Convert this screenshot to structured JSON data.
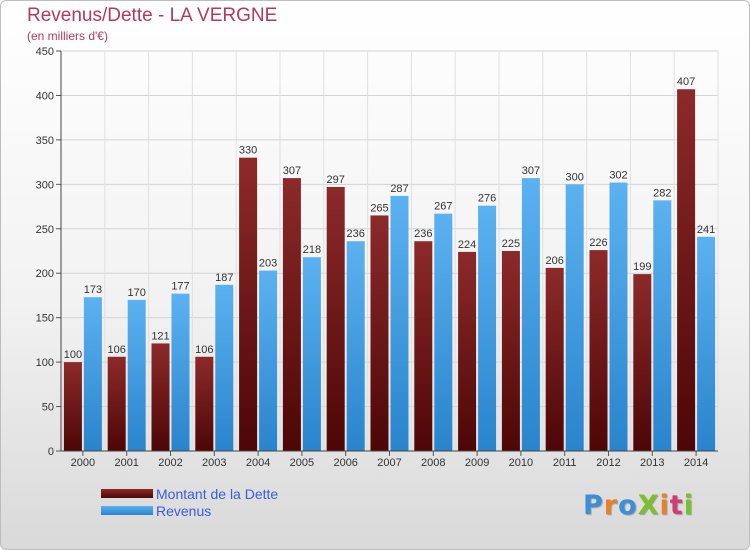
{
  "header": {
    "title": "Revenus/Dette - LA VERGNE",
    "subtitle": "(en milliers d'€)"
  },
  "chart_data": {
    "type": "bar",
    "title": "Revenus/Dette - LA VERGNE",
    "subtitle": "(en milliers d'€)",
    "xlabel": "",
    "ylabel": "",
    "ylim": [
      0,
      450
    ],
    "yticks": [
      0,
      50,
      100,
      150,
      200,
      250,
      300,
      350,
      400,
      450
    ],
    "grid": true,
    "legend_position": "bottom-left",
    "categories": [
      "2000",
      "2001",
      "2002",
      "2003",
      "2004",
      "2005",
      "2006",
      "2007",
      "2008",
      "2009",
      "2010",
      "2011",
      "2012",
      "2013",
      "2014"
    ],
    "series": [
      {
        "name": "Montant de la Dette",
        "color": "#7a1f1f",
        "values": [
          100,
          106,
          121,
          106,
          330,
          307,
          297,
          265,
          236,
          224,
          225,
          206,
          226,
          199,
          407
        ],
        "labels": [
          "100",
          "106",
          "121",
          "106",
          "330",
          "307",
          "297",
          "265",
          "236",
          "224",
          "225",
          "206",
          "226",
          "199",
          "407"
        ]
      },
      {
        "name": "Revenus",
        "color": "#4aa3e6",
        "values": [
          173,
          170,
          177,
          187,
          203,
          218,
          236,
          287,
          267,
          276,
          307,
          300,
          302,
          282,
          241
        ],
        "labels": [
          "173",
          "170",
          "177",
          "187",
          "203",
          "218",
          "236",
          "287",
          "267",
          "276",
          "307",
          "300",
          "302",
          "282",
          "241"
        ]
      }
    ]
  },
  "legend": {
    "items": [
      {
        "label": "Montant de la Dette",
        "color": "#7a1f1f"
      },
      {
        "label": "Revenus",
        "color": "#4aa3e6"
      }
    ]
  },
  "logo": {
    "text": "ProXiti",
    "letter_colors": [
      "#3a8fd8",
      "#e8802a",
      "#3a8fd8",
      "#7cbf2e",
      "#e8802a",
      "#d03c7a",
      "#7cbf2e"
    ]
  }
}
